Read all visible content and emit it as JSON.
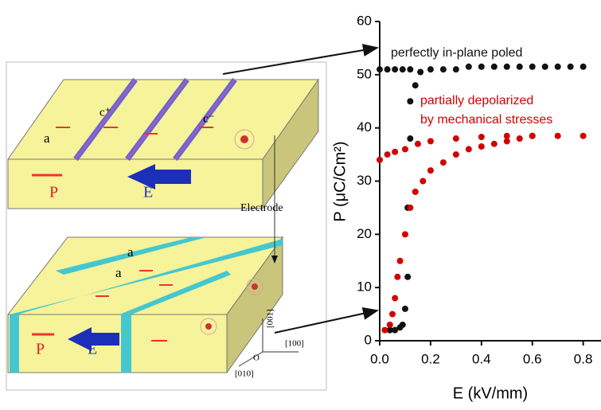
{
  "chart_data": {
    "type": "scatter",
    "xlabel": "E (kV/mm)",
    "ylabel": "P (μC/Cm²)",
    "xlim": [
      0,
      0.87
    ],
    "ylim": [
      0,
      60
    ],
    "xticks": [
      {
        "value": 0,
        "label": "0.0"
      },
      0.2,
      0.4,
      0.6,
      0.8
    ],
    "yticks": [
      0,
      10,
      20,
      30,
      40,
      50,
      60
    ],
    "annotations": [
      "perfectly in-plane poled",
      "partially depolarized",
      "by mechanical stresses"
    ],
    "series": [
      {
        "color": "#111111",
        "x": [
          0,
          0.03,
          0.06,
          0.09,
          0.12,
          0.14,
          0.16,
          0.2,
          0.25,
          0.3,
          0.35,
          0.4,
          0.45,
          0.5,
          0.55,
          0.6,
          0.65,
          0.7,
          0.75,
          0.8,
          0.12,
          0.12,
          0.11,
          0.11,
          0.1,
          0.09,
          0.08,
          0.06,
          0.04
        ],
        "values": [
          51,
          51,
          51,
          51,
          51,
          48,
          50.5,
          51,
          51,
          51,
          51.5,
          51.5,
          51.5,
          51.5,
          51.5,
          51.5,
          51.5,
          51.5,
          51.5,
          51.5,
          45,
          38,
          25,
          12,
          6,
          3,
          2.5,
          2,
          2
        ]
      },
      {
        "color": "#d40000",
        "x": [
          0,
          0.03,
          0.06,
          0.1,
          0.15,
          0.2,
          0.3,
          0.4,
          0.5,
          0.6,
          0.7,
          0.8,
          0.02,
          0.04,
          0.05,
          0.06,
          0.07,
          0.08,
          0.1,
          0.12,
          0.14,
          0.17,
          0.2,
          0.25,
          0.3,
          0.35,
          0.4,
          0.45,
          0.5,
          0.55,
          0.6
        ],
        "values": [
          34,
          35,
          35.5,
          36,
          37,
          37.5,
          38,
          38.3,
          38.5,
          38.5,
          38.5,
          38.5,
          2,
          3,
          5,
          8,
          12,
          15,
          20,
          25,
          28,
          30,
          32,
          33.5,
          35,
          36,
          36.5,
          37,
          37.5,
          38,
          38.5
        ]
      }
    ]
  },
  "diagram": {
    "labels": [
      "c⁺",
      "c⁻",
      "a",
      "P",
      "E",
      "Electrode",
      "a",
      "a",
      "P",
      "E",
      "[001]",
      "[100]",
      "[010]",
      "O"
    ]
  }
}
